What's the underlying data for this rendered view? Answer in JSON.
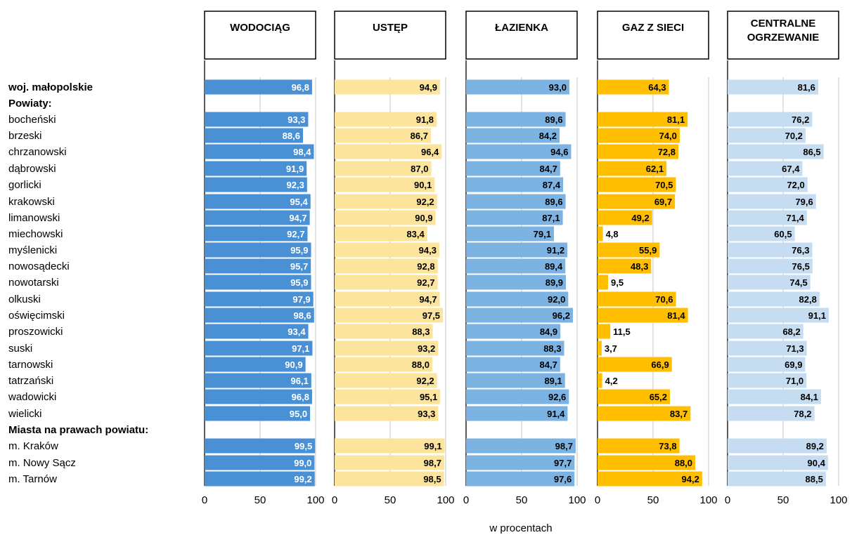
{
  "chart_data": {
    "type": "bar",
    "orientation": "horizontal",
    "xlabel": "w procentach",
    "xlim": [
      0,
      100
    ],
    "xticks": [
      "0",
      "50",
      "100"
    ],
    "grid": true,
    "rows": [
      {
        "label": "woj. małopolskie",
        "bold": true,
        "data": true
      },
      {
        "label": "Powiaty:",
        "bold": true,
        "data": false
      },
      {
        "label": "bocheński",
        "bold": false,
        "data": true
      },
      {
        "label": "brzeski",
        "bold": false,
        "data": true
      },
      {
        "label": "chrzanowski",
        "bold": false,
        "data": true
      },
      {
        "label": "dąbrowski",
        "bold": false,
        "data": true
      },
      {
        "label": "gorlicki",
        "bold": false,
        "data": true
      },
      {
        "label": "krakowski",
        "bold": false,
        "data": true
      },
      {
        "label": "limanowski",
        "bold": false,
        "data": true
      },
      {
        "label": "miechowski",
        "bold": false,
        "data": true
      },
      {
        "label": "myślenicki",
        "bold": false,
        "data": true
      },
      {
        "label": "nowosądecki",
        "bold": false,
        "data": true
      },
      {
        "label": "nowotarski",
        "bold": false,
        "data": true
      },
      {
        "label": "olkuski",
        "bold": false,
        "data": true
      },
      {
        "label": "oświęcimski",
        "bold": false,
        "data": true
      },
      {
        "label": "proszowicki",
        "bold": false,
        "data": true
      },
      {
        "label": "suski",
        "bold": false,
        "data": true
      },
      {
        "label": "tarnowski",
        "bold": false,
        "data": true
      },
      {
        "label": "tatrzański",
        "bold": false,
        "data": true
      },
      {
        "label": "wadowicki",
        "bold": false,
        "data": true
      },
      {
        "label": "wielicki",
        "bold": false,
        "data": true
      },
      {
        "label": "Miasta na prawach powiatu:",
        "bold": true,
        "data": false
      },
      {
        "label": "m. Kraków",
        "bold": false,
        "data": true
      },
      {
        "label": "m. Nowy Sącz",
        "bold": false,
        "data": true
      },
      {
        "label": "m. Tarnów",
        "bold": false,
        "data": true
      }
    ],
    "series": [
      {
        "name": "WODOCIĄG",
        "header_lines": [
          "WODOCIĄG"
        ],
        "color": "#4a90d4",
        "label_color": "#ffffff",
        "values": [
          96.8,
          93.3,
          88.6,
          98.4,
          91.9,
          92.3,
          95.4,
          94.7,
          92.7,
          95.9,
          95.7,
          95.9,
          97.9,
          98.6,
          93.4,
          97.1,
          90.9,
          96.1,
          96.8,
          95.0,
          99.5,
          99.0,
          99.2
        ],
        "labels": [
          "96,8",
          "93,3",
          "88,6",
          "98,4",
          "91,9",
          "92,3",
          "95,4",
          "94,7",
          "92,7",
          "95,9",
          "95,7",
          "95,9",
          "97,9",
          "98,6",
          "93,4",
          "97,1",
          "90,9",
          "96,1",
          "96,8",
          "95,0",
          "99,5",
          "99,0",
          "99,2"
        ]
      },
      {
        "name": "USTĘP",
        "header_lines": [
          "USTĘP"
        ],
        "color": "#fde49c",
        "label_color": "#000000",
        "values": [
          94.9,
          91.8,
          86.7,
          96.4,
          87.0,
          90.1,
          92.2,
          90.9,
          83.4,
          94.3,
          92.8,
          92.7,
          94.7,
          97.5,
          88.3,
          93.2,
          88.0,
          92.2,
          95.1,
          93.3,
          99.1,
          98.7,
          98.5
        ],
        "labels": [
          "94,9",
          "91,8",
          "86,7",
          "96,4",
          "87,0",
          "90,1",
          "92,2",
          "90,9",
          "83,4",
          "94,3",
          "92,8",
          "92,7",
          "94,7",
          "97,5",
          "88,3",
          "93,2",
          "88,0",
          "92,2",
          "95,1",
          "93,3",
          "99,1",
          "98,7",
          "98,5"
        ]
      },
      {
        "name": "ŁAZIENKA",
        "header_lines": [
          "ŁAZIENKA"
        ],
        "color": "#7db3e2",
        "label_color": "#000000",
        "values": [
          93.0,
          89.6,
          84.2,
          94.6,
          84.7,
          87.4,
          89.6,
          87.1,
          79.1,
          91.2,
          89.4,
          89.9,
          92.0,
          96.2,
          84.9,
          88.3,
          84.7,
          89.1,
          92.6,
          91.4,
          98.7,
          97.7,
          97.6
        ],
        "labels": [
          "93,0",
          "89,6",
          "84,2",
          "94,6",
          "84,7",
          "87,4",
          "89,6",
          "87,1",
          "79,1",
          "91,2",
          "89,4",
          "89,9",
          "92,0",
          "96,2",
          "84,9",
          "88,3",
          "84,7",
          "89,1",
          "92,6",
          "91,4",
          "98,7",
          "97,7",
          "97,6"
        ]
      },
      {
        "name": "GAZ Z SIECI",
        "header_lines": [
          "GAZ Z SIECI"
        ],
        "color": "#ffbf00",
        "label_color": "#000000",
        "values": [
          64.3,
          81.1,
          74.0,
          72.8,
          62.1,
          70.5,
          69.7,
          49.2,
          4.8,
          55.9,
          48.3,
          9.5,
          70.6,
          81.4,
          11.5,
          3.7,
          66.9,
          4.2,
          65.2,
          83.7,
          73.8,
          88.0,
          94.2
        ],
        "labels": [
          "64,3",
          "81,1",
          "74,0",
          "72,8",
          "62,1",
          "70,5",
          "69,7",
          "49,2",
          "4,8",
          "55,9",
          "48,3",
          "9,5",
          "70,6",
          "81,4",
          "11,5",
          "3,7",
          "66,9",
          "4,2",
          "65,2",
          "83,7",
          "73,8",
          "88,0",
          "94,2"
        ]
      },
      {
        "name": "CENTRALNE OGRZEWANIE",
        "header_lines": [
          "CENTRALNE",
          "OGRZEWANIE"
        ],
        "color": "#c6dcf1",
        "label_color": "#000000",
        "values": [
          81.6,
          76.2,
          70.2,
          86.5,
          67.4,
          72.0,
          79.6,
          71.4,
          60.5,
          76.3,
          76.5,
          74.5,
          82.8,
          91.1,
          68.2,
          71.3,
          69.9,
          71.0,
          84.1,
          78.2,
          89.2,
          90.4,
          88.5
        ],
        "labels": [
          "81,6",
          "76,2",
          "70,2",
          "86,5",
          "67,4",
          "72,0",
          "79,6",
          "71,4",
          "60,5",
          "76,3",
          "76,5",
          "74,5",
          "82,8",
          "91,1",
          "68,2",
          "71,3",
          "69,9",
          "71,0",
          "84,1",
          "78,2",
          "89,2",
          "90,4",
          "88,5"
        ]
      }
    ]
  }
}
